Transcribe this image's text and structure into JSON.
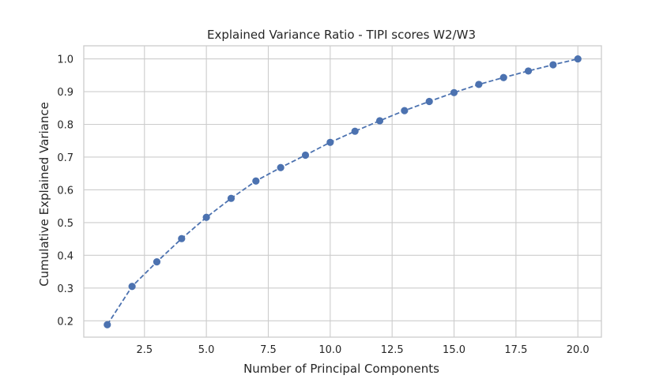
{
  "chart_data": {
    "type": "line",
    "title": "Explained Variance Ratio - TIPI scores W2/W3",
    "xlabel": "Number of Principal Components",
    "ylabel": "Cumulative Explained Variance",
    "xlim": [
      0.05,
      20.95
    ],
    "ylim": [
      0.15,
      1.04
    ],
    "xticks": [
      2.5,
      5.0,
      7.5,
      10.0,
      12.5,
      15.0,
      17.5,
      20.0
    ],
    "xtick_labels": [
      "2.5",
      "5.0",
      "7.5",
      "10.0",
      "12.5",
      "15.0",
      "17.5",
      "20.0"
    ],
    "yticks": [
      0.2,
      0.3,
      0.4,
      0.5,
      0.6,
      0.7,
      0.8,
      0.9,
      1.0
    ],
    "ytick_labels": [
      "0.2",
      "0.3",
      "0.4",
      "0.5",
      "0.6",
      "0.7",
      "0.8",
      "0.9",
      "1.0"
    ],
    "grid": true,
    "line_style": "dashed",
    "marker": "circle",
    "color": "#4c72b0",
    "series": [
      {
        "x": [
          1,
          2,
          3,
          4,
          5,
          6,
          7,
          8,
          9,
          10,
          11,
          12,
          13,
          14,
          15,
          16,
          17,
          18,
          19,
          20
        ],
        "values": [
          0.188,
          0.305,
          0.38,
          0.451,
          0.516,
          0.574,
          0.627,
          0.668,
          0.706,
          0.745,
          0.779,
          0.811,
          0.842,
          0.87,
          0.897,
          0.922,
          0.943,
          0.963,
          0.982,
          1.0
        ]
      }
    ]
  }
}
